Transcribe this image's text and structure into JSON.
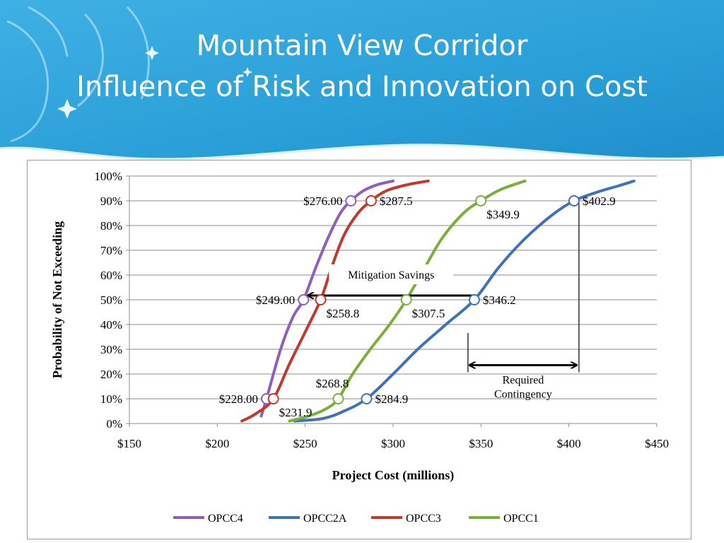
{
  "slide": {
    "title_line1": "Mountain View Corridor",
    "title_line2": "Influence of  Risk and Innovation on Cost"
  },
  "colors": {
    "header_blue": "#2a9fd8",
    "OPCC4": "#8e5fbf",
    "OPCC2A": "#3f72b8",
    "OPCC3": "#c0392b",
    "OPCC1": "#7ab03a"
  },
  "chart_data": {
    "type": "line",
    "title": "",
    "xlabel": "Project Cost (millions)",
    "ylabel": "Probability of Not Exceeding",
    "xlim": [
      150,
      450
    ],
    "ylim": [
      0,
      100
    ],
    "x_ticks": [
      "$150",
      "$200",
      "$250",
      "$300",
      "$350",
      "$400",
      "$450"
    ],
    "y_ticks": [
      "0%",
      "10%",
      "20%",
      "30%",
      "40%",
      "50%",
      "60%",
      "70%",
      "80%",
      "90%",
      "100%"
    ],
    "grid": "horizontal",
    "legend_position": "bottom",
    "series": [
      {
        "name": "OPCC4",
        "color": "#8e5fbf",
        "points": [
          [
            225,
            3
          ],
          [
            228,
            10
          ],
          [
            236,
            30
          ],
          [
            243,
            43
          ],
          [
            249,
            50
          ],
          [
            256,
            63
          ],
          [
            263,
            75
          ],
          [
            270,
            85
          ],
          [
            276,
            90
          ],
          [
            283,
            94
          ],
          [
            291,
            96.5
          ],
          [
            300,
            98
          ]
        ]
      },
      {
        "name": "OPCC2A",
        "color": "#3f72b8",
        "points": [
          [
            244,
            1
          ],
          [
            260,
            2
          ],
          [
            272,
            5
          ],
          [
            284.9,
            10
          ],
          [
            300,
            20
          ],
          [
            314,
            30
          ],
          [
            330,
            40
          ],
          [
            346.2,
            50
          ],
          [
            360,
            63
          ],
          [
            374,
            74
          ],
          [
            390,
            84
          ],
          [
            402.9,
            90
          ],
          [
            416,
            93.5
          ],
          [
            428,
            96
          ],
          [
            437,
            98
          ]
        ]
      },
      {
        "name": "OPCC3",
        "color": "#c0392b",
        "points": [
          [
            214,
            1
          ],
          [
            222,
            4
          ],
          [
            231.9,
            10
          ],
          [
            241,
            24
          ],
          [
            250,
            37
          ],
          [
            258.8,
            50
          ],
          [
            265,
            63
          ],
          [
            272,
            76
          ],
          [
            280,
            85
          ],
          [
            287.5,
            90
          ],
          [
            296,
            94
          ],
          [
            308,
            96.5
          ],
          [
            320,
            98
          ]
        ]
      },
      {
        "name": "OPCC1",
        "color": "#7ab03a",
        "points": [
          [
            241,
            1
          ],
          [
            252,
            3
          ],
          [
            262,
            6
          ],
          [
            268.8,
            10
          ],
          [
            277,
            20
          ],
          [
            287,
            30
          ],
          [
            298,
            40
          ],
          [
            307.5,
            50
          ],
          [
            318,
            63
          ],
          [
            328,
            75
          ],
          [
            340,
            85
          ],
          [
            349.9,
            90
          ],
          [
            361,
            94.5
          ],
          [
            375,
            98
          ]
        ]
      }
    ],
    "markers": [
      {
        "series": "OPCC4",
        "x": 276.0,
        "y": 90,
        "label": "$276.00",
        "label_side": "left"
      },
      {
        "series": "OPCC3",
        "x": 287.5,
        "y": 90,
        "label": "$287.5",
        "label_side": "right"
      },
      {
        "series": "OPCC1",
        "x": 349.9,
        "y": 90,
        "label": "$349.9",
        "label_side": "below-right"
      },
      {
        "series": "OPCC2A",
        "x": 402.9,
        "y": 90,
        "label": "$402.9",
        "label_side": "right"
      },
      {
        "series": "OPCC4",
        "x": 249.0,
        "y": 50,
        "label": "$249.00",
        "label_side": "left"
      },
      {
        "series": "OPCC3",
        "x": 258.8,
        "y": 50,
        "label": "$258.8",
        "label_side": "below-right"
      },
      {
        "series": "OPCC1",
        "x": 307.5,
        "y": 50,
        "label": "$307.5",
        "label_side": "below-right"
      },
      {
        "series": "OPCC2A",
        "x": 346.2,
        "y": 50,
        "label": "$346.2",
        "label_side": "right"
      },
      {
        "series": "OPCC4",
        "x": 228.0,
        "y": 10,
        "label": "$228.00",
        "label_side": "left"
      },
      {
        "series": "OPCC3",
        "x": 231.9,
        "y": 10,
        "label": "$231.9",
        "label_side": "below-right"
      },
      {
        "series": "OPCC1",
        "x": 268.8,
        "y": 10,
        "label": "$268.8",
        "label_side": "above-left"
      },
      {
        "series": "OPCC2A",
        "x": 284.9,
        "y": 10,
        "label": "$284.9",
        "label_side": "right"
      }
    ],
    "annotations": {
      "mitigation_savings": {
        "text": "Mitigation Savings",
        "from_x": 346.2,
        "to_x": 249.0,
        "y": 50
      },
      "required_contingency": {
        "lines": [
          "Required",
          "Contingency"
        ],
        "from_x": 346.2,
        "to_x": 402.9,
        "y": 23
      }
    }
  }
}
